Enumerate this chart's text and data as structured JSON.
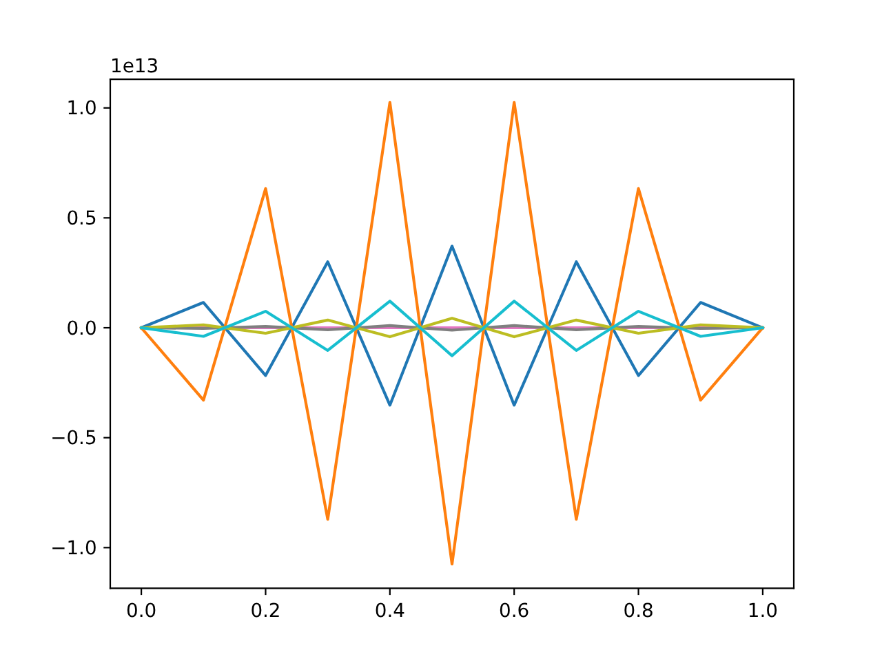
{
  "chart_data": {
    "type": "line",
    "x": [
      0,
      0.1,
      0.2,
      0.3,
      0.4,
      0.5,
      0.6,
      0.7,
      0.8,
      0.9,
      1.0
    ],
    "series": [
      {
        "color": "#1f77b4",
        "values": [
          0,
          0.115,
          -0.217,
          0.3,
          -0.352,
          0.371,
          -0.352,
          0.3,
          -0.217,
          0.115,
          0
        ]
      },
      {
        "color": "#ff7f0e",
        "values": [
          0,
          -0.329,
          0.633,
          -0.871,
          1.025,
          -1.075,
          1.025,
          -0.871,
          0.633,
          -0.329,
          0
        ]
      },
      {
        "color": "#e377c2",
        "values": [
          0,
          0,
          0,
          0,
          0,
          0,
          0,
          0,
          0,
          0,
          0
        ]
      },
      {
        "color": "#7f7f7f",
        "values": [
          0,
          -0.003,
          0.006,
          -0.009,
          0.01,
          -0.011,
          0.01,
          -0.009,
          0.006,
          -0.003,
          0
        ]
      },
      {
        "color": "#bcbd22",
        "values": [
          0,
          0.013,
          -0.025,
          0.035,
          -0.041,
          0.043,
          -0.041,
          0.035,
          -0.025,
          0.013,
          0
        ]
      },
      {
        "color": "#17becf",
        "values": [
          0,
          -0.039,
          0.075,
          -0.103,
          0.121,
          -0.127,
          0.121,
          -0.103,
          0.075,
          -0.039,
          0
        ]
      }
    ],
    "xlim": [
      -0.05,
      1.05
    ],
    "xticks": [
      {
        "value": 0,
        "label": "0.0"
      },
      0.2,
      0.4,
      0.6,
      0.8,
      {
        "value": 1,
        "label": "1.0"
      }
    ],
    "ylim": [
      -1.185,
      1.13
    ],
    "yticks": [
      {
        "value": -1,
        "label": "−1.0"
      },
      {
        "value": -0.5,
        "label": "−0.5"
      },
      {
        "value": 0,
        "label": "0.0"
      },
      0.5,
      {
        "value": 1,
        "label": "1.0"
      }
    ],
    "annotations": [
      "1e13"
    ]
  }
}
